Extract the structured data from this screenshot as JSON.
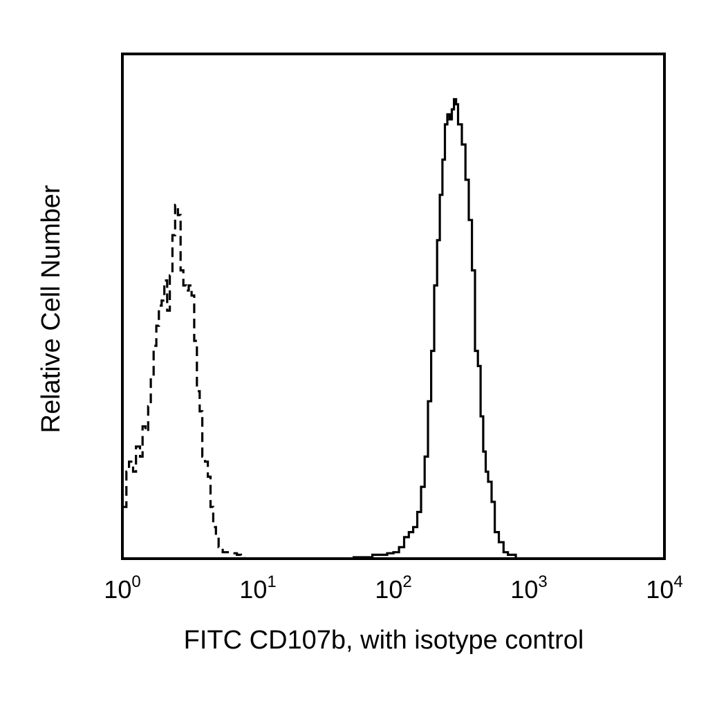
{
  "chart_data": {
    "type": "line",
    "title": "",
    "xlabel": "FITC CD107b, with isotype control",
    "ylabel": "Relative Cell Number",
    "x_scale": "log",
    "xlim": [
      1,
      10000
    ],
    "ylim": [
      0,
      100
    ],
    "x_ticks": [
      {
        "base": "10",
        "exp": "0",
        "value": 1
      },
      {
        "base": "10",
        "exp": "1",
        "value": 10
      },
      {
        "base": "10",
        "exp": "2",
        "value": 100
      },
      {
        "base": "10",
        "exp": "3",
        "value": 1000
      },
      {
        "base": "10",
        "exp": "4",
        "value": 10000
      }
    ],
    "grid": false,
    "legend": "none",
    "series": [
      {
        "style": "dashed",
        "color": "#000000",
        "x": [
          1.0,
          1.07,
          1.12,
          1.2,
          1.26,
          1.35,
          1.41,
          1.48,
          1.55,
          1.62,
          1.7,
          1.78,
          1.86,
          1.95,
          2.04,
          2.14,
          2.24,
          2.34,
          2.45,
          2.57,
          2.69,
          2.82,
          2.95,
          3.09,
          3.24,
          3.39,
          3.55,
          3.72,
          3.89,
          4.07,
          4.27,
          4.47,
          4.68,
          4.9,
          5.13,
          5.5,
          6.0,
          6.5,
          7.0,
          7.5,
          8.0
        ],
        "y": [
          10,
          17,
          19,
          17,
          22,
          20,
          26,
          25,
          30,
          36,
          42,
          46,
          50,
          51,
          55,
          49,
          56,
          64,
          70,
          68,
          57,
          54,
          53,
          54,
          52,
          43,
          33,
          29,
          20,
          19,
          16,
          10,
          6,
          4,
          2,
          1,
          1,
          0.8,
          0.5,
          0.3,
          0
        ]
      },
      {
        "style": "solid",
        "color": "#000000",
        "x": [
          50,
          70,
          90,
          100,
          110,
          120,
          130,
          140,
          150,
          160,
          170,
          180,
          190,
          200,
          210,
          220,
          230,
          240,
          250,
          260,
          270,
          280,
          290,
          300,
          320,
          340,
          360,
          380,
          400,
          420,
          440,
          460,
          480,
          500,
          530,
          560,
          600,
          650,
          700,
          800
        ],
        "y": [
          0,
          0.5,
          0.8,
          1,
          2,
          4,
          5,
          6,
          9,
          14,
          20,
          31,
          41,
          54,
          63,
          72,
          79,
          86,
          88,
          87,
          89,
          91,
          90,
          86,
          82,
          75,
          67,
          57,
          41,
          38,
          28,
          21,
          17,
          15,
          11,
          5,
          3,
          1,
          0.5,
          0
        ]
      }
    ]
  }
}
